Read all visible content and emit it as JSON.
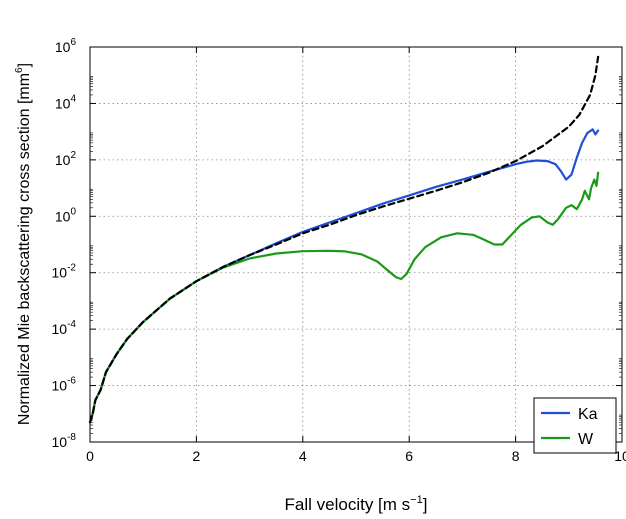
{
  "chart_data": {
    "type": "line",
    "xlabel": "Fall velocity [m s",
    "xlabel_sup": "−1",
    "xlabel_end": "]",
    "ylabel": "Normalized Mie backscattering cross section [mm",
    "ylabel_sup": "6",
    "ylabel_end": "]",
    "xlim": [
      0,
      10
    ],
    "ylim_log10": [
      -8,
      6
    ],
    "yscale": "log",
    "grid": true,
    "legend_position": "bottom-right",
    "x_ticks": [
      {
        "value": 0,
        "label": "0"
      },
      {
        "value": 2,
        "label": "2"
      },
      {
        "value": 4,
        "label": "4"
      },
      {
        "value": 6,
        "label": "6"
      },
      {
        "value": 8,
        "label": "8"
      },
      {
        "value": 10,
        "label": "10"
      }
    ],
    "y_ticks": [
      {
        "exp": -8,
        "base": "10",
        "sup": "-8"
      },
      {
        "exp": -6,
        "base": "10",
        "sup": "-6"
      },
      {
        "exp": -4,
        "base": "10",
        "sup": "-4"
      },
      {
        "exp": -2,
        "base": "10",
        "sup": "-2"
      },
      {
        "exp": 0,
        "base": "10",
        "sup": "0"
      },
      {
        "exp": 2,
        "base": "10",
        "sup": "2"
      },
      {
        "exp": 4,
        "base": "10",
        "sup": "4"
      },
      {
        "exp": 6,
        "base": "10",
        "sup": "6"
      }
    ],
    "series": [
      {
        "name": "",
        "style": "dashed",
        "color": "#000000",
        "x": [
          0,
          0.05,
          0.1,
          0.2,
          0.3,
          0.5,
          0.7,
          1.0,
          1.5,
          2.0,
          2.5,
          3.0,
          3.5,
          4.0,
          4.5,
          5.0,
          5.5,
          6.0,
          6.5,
          7.0,
          7.5,
          8.0,
          8.5,
          9.0,
          9.2,
          9.4,
          9.5,
          9.55
        ],
        "y": [
          5e-08,
          1e-07,
          3e-07,
          7e-07,
          3e-06,
          1.3e-05,
          4.5e-05,
          0.00018,
          0.0012,
          0.005,
          0.016,
          0.042,
          0.1,
          0.25,
          0.5,
          1.1,
          2.2,
          4.2,
          8,
          16,
          35,
          90,
          300,
          1500,
          4000,
          20000,
          100000,
          450000
        ]
      },
      {
        "name": "Ka",
        "style": "solid",
        "color": "#1f4fd8",
        "x": [
          0,
          0.05,
          0.1,
          0.2,
          0.3,
          0.5,
          0.7,
          1.0,
          1.5,
          2.0,
          2.5,
          3.0,
          3.5,
          4.0,
          4.5,
          5.0,
          5.5,
          6.0,
          6.5,
          7.0,
          7.5,
          7.8,
          8.0,
          8.2,
          8.4,
          8.6,
          8.75,
          8.85,
          8.95,
          9.05,
          9.15,
          9.25,
          9.35,
          9.45,
          9.5,
          9.55
        ],
        "y": [
          5e-08,
          1e-07,
          3e-07,
          7e-07,
          3e-06,
          1.3e-05,
          4.5e-05,
          0.00018,
          0.0012,
          0.005,
          0.016,
          0.042,
          0.11,
          0.28,
          0.6,
          1.3,
          2.8,
          5.5,
          11,
          20,
          38,
          55,
          70,
          85,
          95,
          90,
          70,
          40,
          20,
          30,
          120,
          400,
          900,
          1200,
          800,
          1100
        ]
      },
      {
        "name": "W",
        "style": "solid",
        "color": "#1a9a1a",
        "x": [
          0,
          0.05,
          0.1,
          0.2,
          0.3,
          0.5,
          0.7,
          1.0,
          1.5,
          2.0,
          2.5,
          3.0,
          3.5,
          4.0,
          4.5,
          4.8,
          5.1,
          5.4,
          5.6,
          5.75,
          5.85,
          5.95,
          6.1,
          6.3,
          6.6,
          6.9,
          7.2,
          7.4,
          7.6,
          7.75,
          7.9,
          8.1,
          8.3,
          8.45,
          8.6,
          8.7,
          8.8,
          8.95,
          9.05,
          9.15,
          9.25,
          9.3,
          9.38,
          9.42,
          9.48,
          9.52,
          9.55
        ],
        "y": [
          5e-08,
          1e-07,
          3e-07,
          7e-07,
          3e-06,
          1.3e-05,
          4.5e-05,
          0.00018,
          0.0012,
          0.005,
          0.015,
          0.032,
          0.048,
          0.058,
          0.06,
          0.057,
          0.045,
          0.025,
          0.012,
          0.007,
          0.006,
          0.009,
          0.03,
          0.08,
          0.18,
          0.25,
          0.22,
          0.15,
          0.1,
          0.1,
          0.2,
          0.5,
          0.9,
          1.0,
          0.6,
          0.5,
          0.8,
          2.0,
          2.5,
          1.8,
          4.0,
          8.0,
          4.0,
          10.0,
          20.0,
          12.0,
          35.0
        ]
      }
    ]
  }
}
